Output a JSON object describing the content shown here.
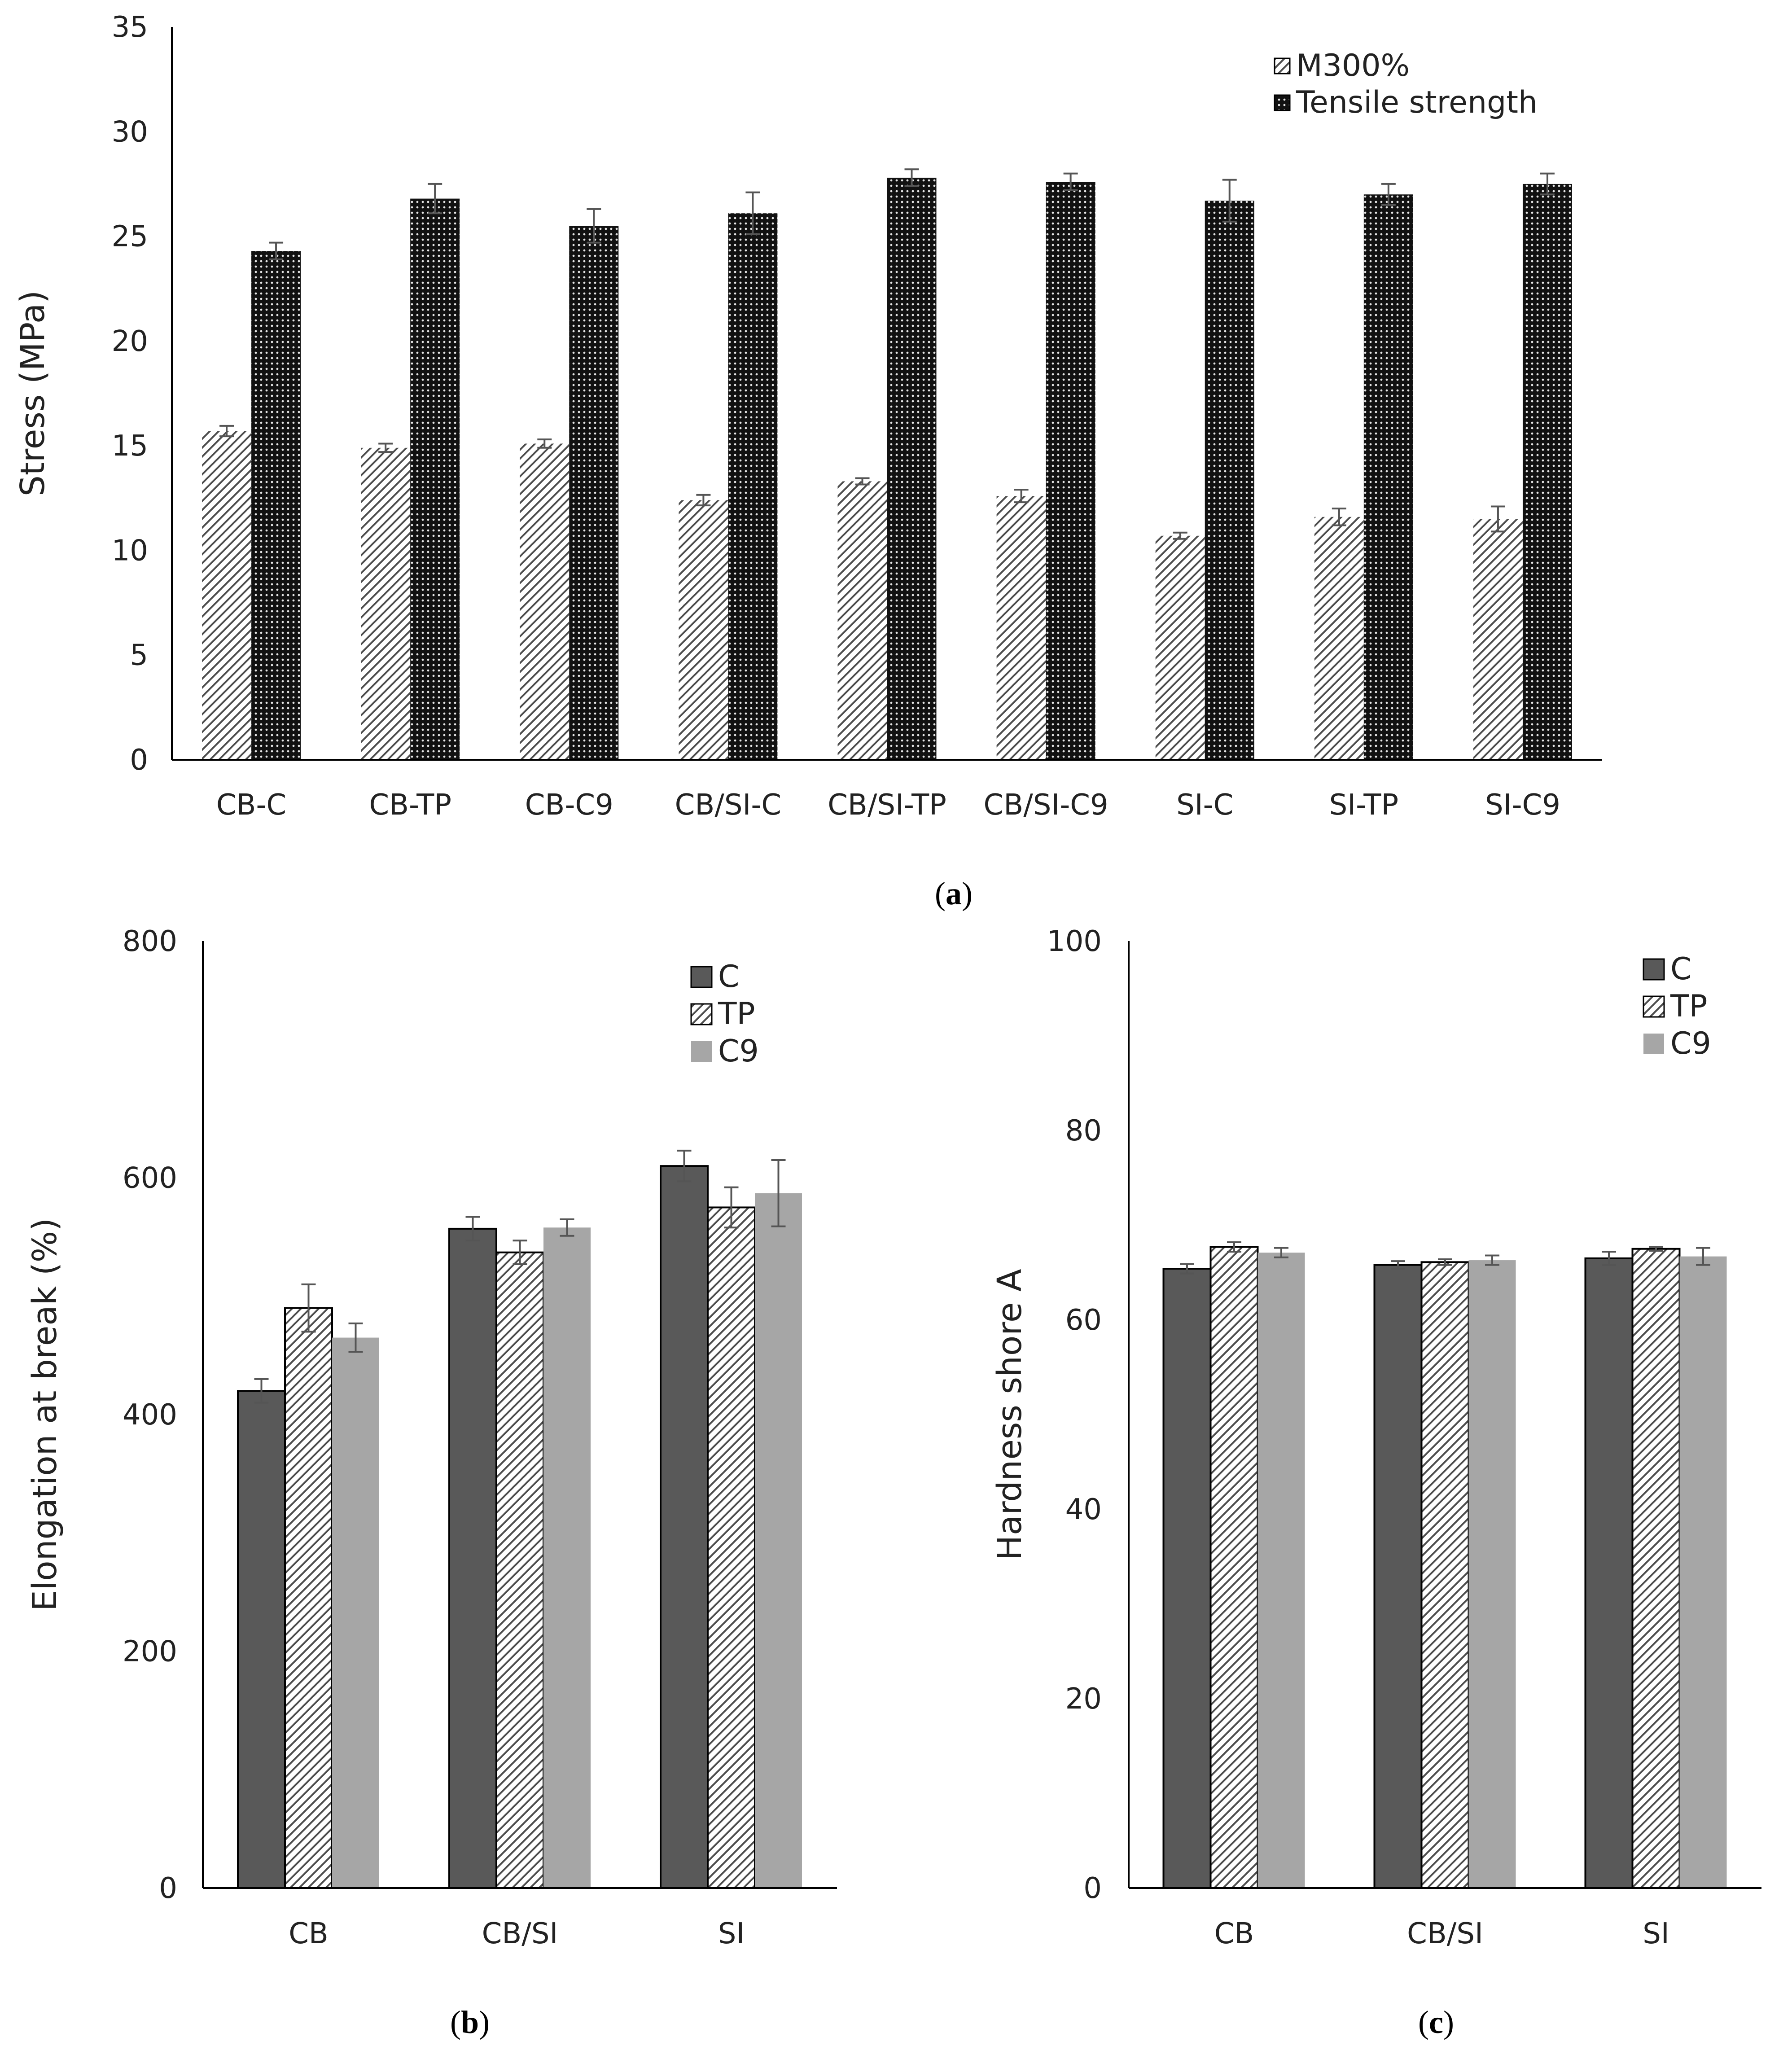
{
  "colors": {
    "axis": "#000000",
    "bar_C": "#595959",
    "bar_C9": "#a6a6a6",
    "hatch_stroke": "#4d4d4d",
    "dots_bg": "#111111",
    "error_bar": "#555555",
    "legend_c9_text": "#999999"
  },
  "chart_data": [
    {
      "id": "a",
      "type": "bar",
      "caption": "a",
      "ylabel": "Stress (MPa)",
      "xlabel": "",
      "ylim": [
        0,
        35
      ],
      "yticks": [
        0,
        5,
        10,
        15,
        20,
        25,
        30,
        35
      ],
      "categories": [
        "CB-C",
        "CB-TP",
        "CB-C9",
        "CB/SI-C",
        "CB/SI-TP",
        "CB/SI-C9",
        "SI-C",
        "SI-TP",
        "SI-C9"
      ],
      "legend_position": "top-right",
      "series": [
        {
          "name": "M300%",
          "pattern": "diagonal-hatch",
          "values": [
            15.7,
            14.9,
            15.1,
            12.4,
            13.3,
            12.6,
            10.7,
            11.6,
            11.5
          ],
          "errors": [
            0.25,
            0.2,
            0.2,
            0.25,
            0.15,
            0.3,
            0.15,
            0.4,
            0.6
          ]
        },
        {
          "name": "Tensile strength",
          "pattern": "dots",
          "values": [
            24.3,
            26.8,
            25.5,
            26.1,
            27.8,
            27.6,
            26.7,
            27.0,
            27.5
          ],
          "errors": [
            0.4,
            0.7,
            0.8,
            1.0,
            0.4,
            0.4,
            1.0,
            0.5,
            0.5
          ]
        }
      ]
    },
    {
      "id": "b",
      "type": "bar",
      "caption": "b",
      "ylabel": "Elongation at break (%)",
      "xlabel": "",
      "ylim": [
        0,
        800
      ],
      "yticks": [
        0,
        200,
        400,
        600,
        800
      ],
      "categories": [
        "CB",
        "CB/SI",
        "SI"
      ],
      "legend_position": "top-right",
      "series": [
        {
          "name": "C",
          "pattern": "solid-dark",
          "values": [
            420,
            557,
            610
          ],
          "errors": [
            10,
            10,
            13
          ]
        },
        {
          "name": "TP",
          "pattern": "diagonal-hatch",
          "values": [
            490,
            537,
            575
          ],
          "errors": [
            20,
            10,
            17
          ]
        },
        {
          "name": "C9",
          "pattern": "solid-light",
          "values": [
            465,
            558,
            587
          ],
          "errors": [
            12,
            7,
            28
          ]
        }
      ]
    },
    {
      "id": "c",
      "type": "bar",
      "caption": "c",
      "ylabel": "Hardness shore A",
      "xlabel": "",
      "ylim": [
        0,
        100
      ],
      "yticks": [
        0,
        20,
        40,
        60,
        80,
        100
      ],
      "categories": [
        "CB",
        "CB/SI",
        "SI"
      ],
      "legend_position": "top-right",
      "series": [
        {
          "name": "C",
          "pattern": "solid-dark",
          "values": [
            65.4,
            65.8,
            66.5
          ],
          "errors": [
            0.5,
            0.4,
            0.7
          ]
        },
        {
          "name": "TP",
          "pattern": "diagonal-hatch",
          "values": [
            67.7,
            66.1,
            67.5
          ],
          "errors": [
            0.5,
            0.3,
            0.2
          ]
        },
        {
          "name": "C9",
          "pattern": "solid-light",
          "values": [
            67.1,
            66.3,
            66.7
          ],
          "errors": [
            0.5,
            0.5,
            0.9
          ]
        }
      ]
    }
  ]
}
